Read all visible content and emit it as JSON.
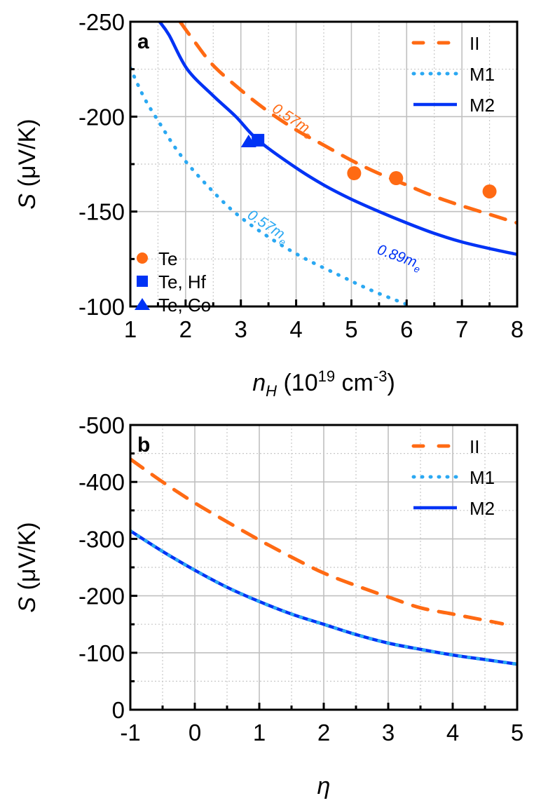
{
  "colors": {
    "II": "#ff6a13",
    "M1": "#2aa8f2",
    "M2": "#0033f5",
    "Te": "#ff6a13",
    "Te_Hf": "#0033f5",
    "Te_Co": "#0033f5",
    "grid_major": "#c0c0c0",
    "grid_minor": "#c8c8c8",
    "axis": "#000000"
  },
  "chart_data": [
    {
      "id": "a",
      "type": "line",
      "panel_label": "a",
      "title": "",
      "xlabel": "n_H (10^19 cm^-3)",
      "xlabel_parts": {
        "main": "n",
        "sub": "H",
        "rest1": " (10",
        "sup1": "19",
        "rest2": " cm",
        "sup2": "-3",
        "rest3": ")"
      },
      "ylabel": "S (μV/K)",
      "ylabel_parts": {
        "italic": "S",
        "rest": " (μV/K)"
      },
      "xlim": [
        1,
        8
      ],
      "ylim": [
        -100,
        -250
      ],
      "y_inverted": true,
      "xticks": [
        1,
        2,
        3,
        4,
        5,
        6,
        7,
        8
      ],
      "xtick_labels": [
        "1",
        "2",
        "3",
        "4",
        "5",
        "6",
        "7",
        "8"
      ],
      "yticks": [
        -250,
        -200,
        -150,
        -100
      ],
      "ytick_labels": [
        "-250",
        "-200",
        "-150",
        "-100"
      ],
      "x_minor_step": 0.5,
      "y_minor_step": 25,
      "grid": true,
      "series": [
        {
          "name": "II",
          "style": "dashed",
          "x": [
            1.9,
            2.15,
            2.5,
            3.0,
            3.46,
            4.0,
            4.5,
            5.0,
            5.5,
            6.0,
            6.5,
            7.0,
            7.5,
            8.0
          ],
          "y": [
            -250,
            -240,
            -227,
            -214,
            -203.5,
            -193,
            -185,
            -177,
            -170,
            -164,
            -158,
            -153,
            -148.5,
            -144
          ]
        },
        {
          "name": "M1",
          "style": "dotted",
          "x": [
            1.0,
            1.25,
            1.51,
            1.89,
            2.36,
            2.89,
            3.48,
            4.11,
            4.77,
            5.4,
            6.1
          ],
          "y": [
            -225.6,
            -210,
            -197.5,
            -180.5,
            -164.7,
            -149.5,
            -137,
            -126,
            -116.6,
            -108,
            -100
          ]
        },
        {
          "name": "M2",
          "style": "solid",
          "x": [
            1.53,
            1.7,
            2.03,
            2.5,
            2.91,
            3.31,
            4.0,
            4.5,
            5.0,
            5.5,
            6.0,
            6.5,
            7.0,
            7.5,
            8.0
          ],
          "y": [
            -250,
            -243,
            -225,
            -211,
            -200,
            -187.6,
            -173,
            -164,
            -156.5,
            -150,
            -144,
            -138.5,
            -134,
            -130.5,
            -127.4
          ]
        }
      ],
      "scatter": [
        {
          "name": "Te",
          "marker": "circle",
          "points": [
            [
              5.05,
              -170.2
            ],
            [
              5.81,
              -167.6
            ],
            [
              7.5,
              -160.6
            ]
          ]
        },
        {
          "name": "Te, Hf",
          "marker": "square",
          "points": [
            [
              3.31,
              -187.6
            ]
          ]
        },
        {
          "name": "Te, Co",
          "marker": "triangle",
          "points": [
            [
              3.14,
              -186.8
            ]
          ]
        }
      ],
      "legend_lines": {
        "position": "top-right",
        "entries": [
          "II",
          "M1",
          "M2"
        ]
      },
      "legend_markers": {
        "position": "bottom-left",
        "entries": [
          "Te",
          "Te, Hf",
          "Te, Co"
        ]
      },
      "annotations": [
        {
          "text": "0.57",
          "sub": "e",
          "label": "0.57m_e",
          "series": "II",
          "at": [
            3.55,
            -203
          ],
          "angle": 33
        },
        {
          "text": "0.57",
          "sub": "e",
          "label": "0.57m_e",
          "series": "M1",
          "at": [
            3.1,
            -147
          ],
          "angle": 33
        },
        {
          "text": "0.89",
          "sub": "e",
          "label": "0.89m_e",
          "series": "M2",
          "at": [
            5.45,
            -128
          ],
          "angle": 20
        }
      ]
    },
    {
      "id": "b",
      "type": "line",
      "panel_label": "b",
      "title": "",
      "xlabel": "η",
      "ylabel": "S (μV/K)",
      "ylabel_parts": {
        "italic": "S",
        "rest": " (μV/K)"
      },
      "xlim": [
        -1,
        5
      ],
      "ylim": [
        0,
        -500
      ],
      "y_inverted": true,
      "xticks": [
        -1,
        0,
        1,
        2,
        3,
        4,
        5
      ],
      "xtick_labels": [
        "-1",
        "0",
        "1",
        "2",
        "3",
        "4",
        "5"
      ],
      "yticks": [
        -500,
        -400,
        -300,
        -200,
        -100,
        0
      ],
      "ytick_labels": [
        "-500",
        "-400",
        "-300",
        "-200",
        "-100",
        "0"
      ],
      "x_minor_step": 0.5,
      "y_minor_step": 50,
      "grid": true,
      "series": [
        {
          "name": "II",
          "style": "dashed",
          "x": [
            -1,
            -0.5,
            0,
            0.5,
            1,
            1.5,
            2,
            2.5,
            3,
            3.5,
            4,
            4.5,
            4.77
          ],
          "y": [
            -440,
            -400,
            -363,
            -330,
            -298,
            -268,
            -240,
            -218,
            -198,
            -179,
            -168,
            -157,
            -151
          ]
        },
        {
          "name": "M1",
          "style": "dotted",
          "x": [
            -1,
            -0.5,
            0,
            0.5,
            1,
            1.5,
            2,
            2.5,
            3,
            3.5,
            4,
            4.5,
            5
          ],
          "y": [
            -314,
            -278,
            -245,
            -215,
            -190,
            -168,
            -150,
            -132,
            -117,
            -106,
            -96,
            -88,
            -80
          ]
        },
        {
          "name": "M2",
          "style": "solid",
          "x": [
            -1,
            -0.5,
            0,
            0.5,
            1,
            1.5,
            2,
            2.5,
            3,
            3.5,
            4,
            4.5,
            5
          ],
          "y": [
            -314,
            -278,
            -245,
            -215,
            -190,
            -168,
            -150,
            -132,
            -117,
            -106,
            -96,
            -88,
            -80
          ]
        }
      ],
      "legend_lines": {
        "position": "top-right",
        "entries": [
          "II",
          "M1",
          "M2"
        ]
      }
    }
  ]
}
